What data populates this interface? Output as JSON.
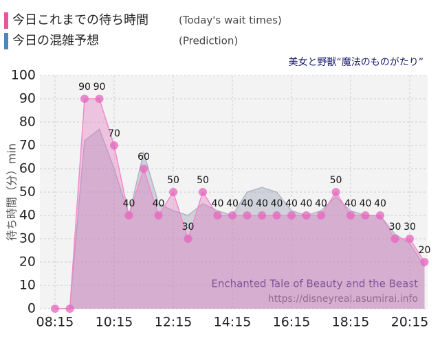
{
  "chart_data": {
    "type": "area",
    "title": "美女と野獣“魔法のものがたり”",
    "y_label": "待ち時間（分）min",
    "annotations": [
      "Enchanted Tale of Beauty and the Beast",
      "https://disneyreal.asumirai.info"
    ],
    "categories": [
      "08:15",
      null,
      null,
      null,
      "10:15",
      null,
      null,
      null,
      "12:15",
      null,
      null,
      null,
      "14:15",
      null,
      null,
      null,
      "16:15",
      null,
      null,
      null,
      "18:15",
      null,
      null,
      null,
      "20:15",
      null
    ],
    "series": [
      {
        "name": "今日これまでの待ち時間",
        "legend_note": "(Today's wait times)",
        "color": "#e8559f",
        "values": [
          0,
          0,
          90,
          90,
          70,
          40,
          60,
          40,
          50,
          30,
          50,
          40,
          40,
          40,
          40,
          40,
          40,
          40,
          40,
          50,
          40,
          40,
          40,
          30,
          30,
          20
        ],
        "value_labels": [
          null,
          null,
          "90",
          "90",
          "70",
          "40",
          "60",
          "40",
          "50",
          "30",
          "50",
          "40",
          "40",
          "40",
          "40",
          "40",
          "40",
          "40",
          "40",
          "50",
          "40",
          "40",
          "40",
          "30",
          "30",
          "20"
        ]
      },
      {
        "name": "今日の混雑予想",
        "legend_note": "(Prediction)",
        "color": "#4f86b8",
        "values": [
          0,
          0,
          72,
          77,
          60,
          40,
          67,
          45,
          42,
          40,
          45,
          42,
          40,
          50,
          52,
          50,
          42,
          40,
          42,
          48,
          42,
          40,
          40,
          32,
          28,
          18
        ]
      }
    ],
    "ylim": [
      0,
      100
    ],
    "yticks": [
      0,
      10,
      20,
      30,
      40,
      50,
      60,
      70,
      80,
      90,
      100
    ],
    "grid": true
  }
}
